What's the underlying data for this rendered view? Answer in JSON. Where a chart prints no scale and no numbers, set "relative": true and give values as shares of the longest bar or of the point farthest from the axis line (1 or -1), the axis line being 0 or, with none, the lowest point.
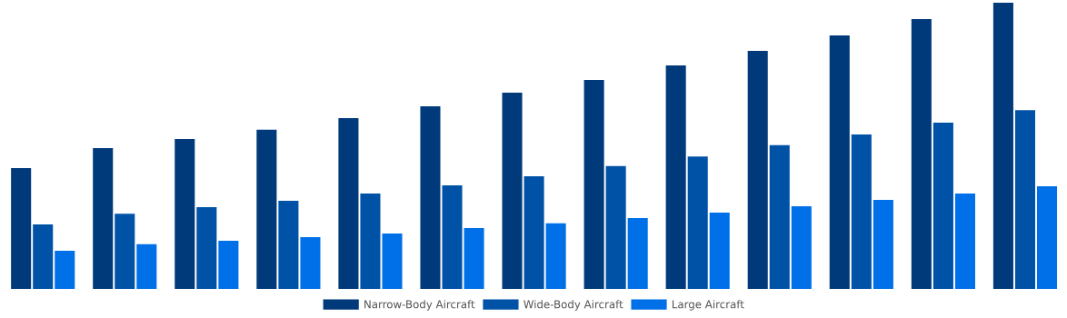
{
  "chart_data": {
    "type": "bar",
    "relative": true,
    "legend": "bottom",
    "grid": false,
    "categories": [
      null,
      null,
      null,
      null,
      null,
      null,
      null,
      null,
      null,
      null,
      null,
      null,
      null
    ],
    "series": [
      {
        "name": "Narrow-Body Aircraft",
        "color": "#003a7a",
        "values": [
          0.422,
          0.492,
          0.524,
          0.556,
          0.597,
          0.638,
          0.686,
          0.73,
          0.781,
          0.832,
          0.886,
          0.943,
          1
        ]
      },
      {
        "name": "Wide-Body Aircraft",
        "color": "#0052a6",
        "values": [
          0.225,
          0.263,
          0.286,
          0.308,
          0.333,
          0.362,
          0.394,
          0.429,
          0.463,
          0.502,
          0.54,
          0.581,
          0.625
        ]
      },
      {
        "name": "Large Aircraft",
        "color": "#0070e8",
        "values": [
          0.133,
          0.156,
          0.168,
          0.181,
          0.194,
          0.213,
          0.229,
          0.248,
          0.267,
          0.289,
          0.311,
          0.333,
          0.359
        ]
      }
    ]
  }
}
